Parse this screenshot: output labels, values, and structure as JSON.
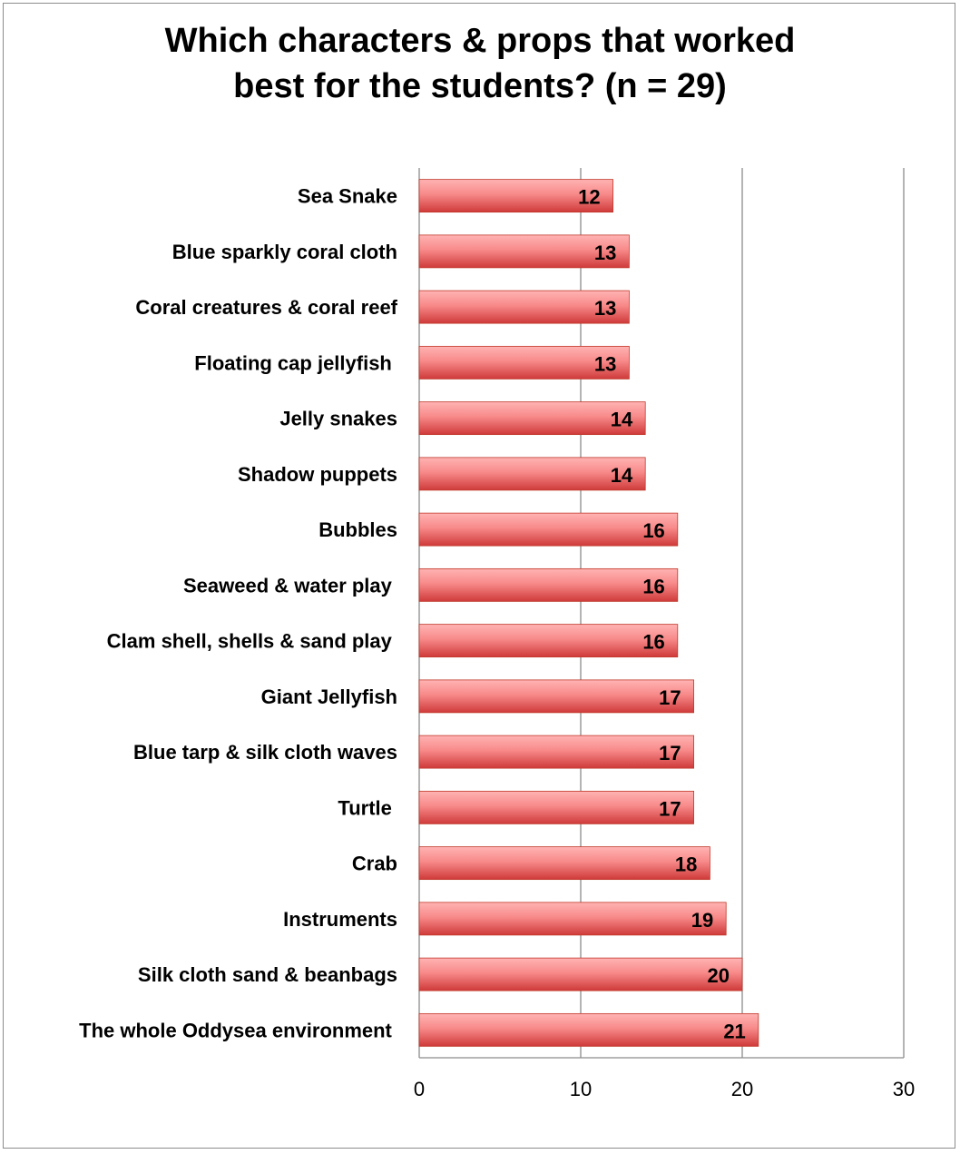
{
  "chart_data": {
    "type": "bar",
    "orientation": "horizontal",
    "title_lines": [
      "Which characters & props that worked",
      "best for the students? (n = 29)"
    ],
    "categories": [
      "Sea Snake",
      "Blue sparkly coral cloth",
      "Coral creatures & coral reef",
      "Floating cap jellyfish ",
      "Jelly snakes",
      "Shadow puppets",
      "Bubbles",
      "Seaweed & water play ",
      "Clam shell, shells & sand play ",
      "Giant Jellyfish",
      "Blue tarp & silk cloth waves",
      "Turtle ",
      "Crab",
      "Instruments",
      "Silk cloth sand & beanbags",
      "The whole Oddysea environment "
    ],
    "values": [
      12,
      13,
      13,
      13,
      14,
      14,
      16,
      16,
      16,
      17,
      17,
      17,
      18,
      19,
      20,
      21
    ],
    "xlim": [
      0,
      30
    ],
    "xticks": [
      0,
      10,
      20,
      30
    ],
    "xlabel": "",
    "ylabel": "",
    "grid": "vertical major gridlines",
    "data_labels": true,
    "legend": "none",
    "colors": {
      "bar_light": "#ffa3a3",
      "bar_dark": "#d43f3f",
      "bar_edge": "#c0392b",
      "grid": "#8c8c8c",
      "frame": "#8c8c8c"
    }
  }
}
